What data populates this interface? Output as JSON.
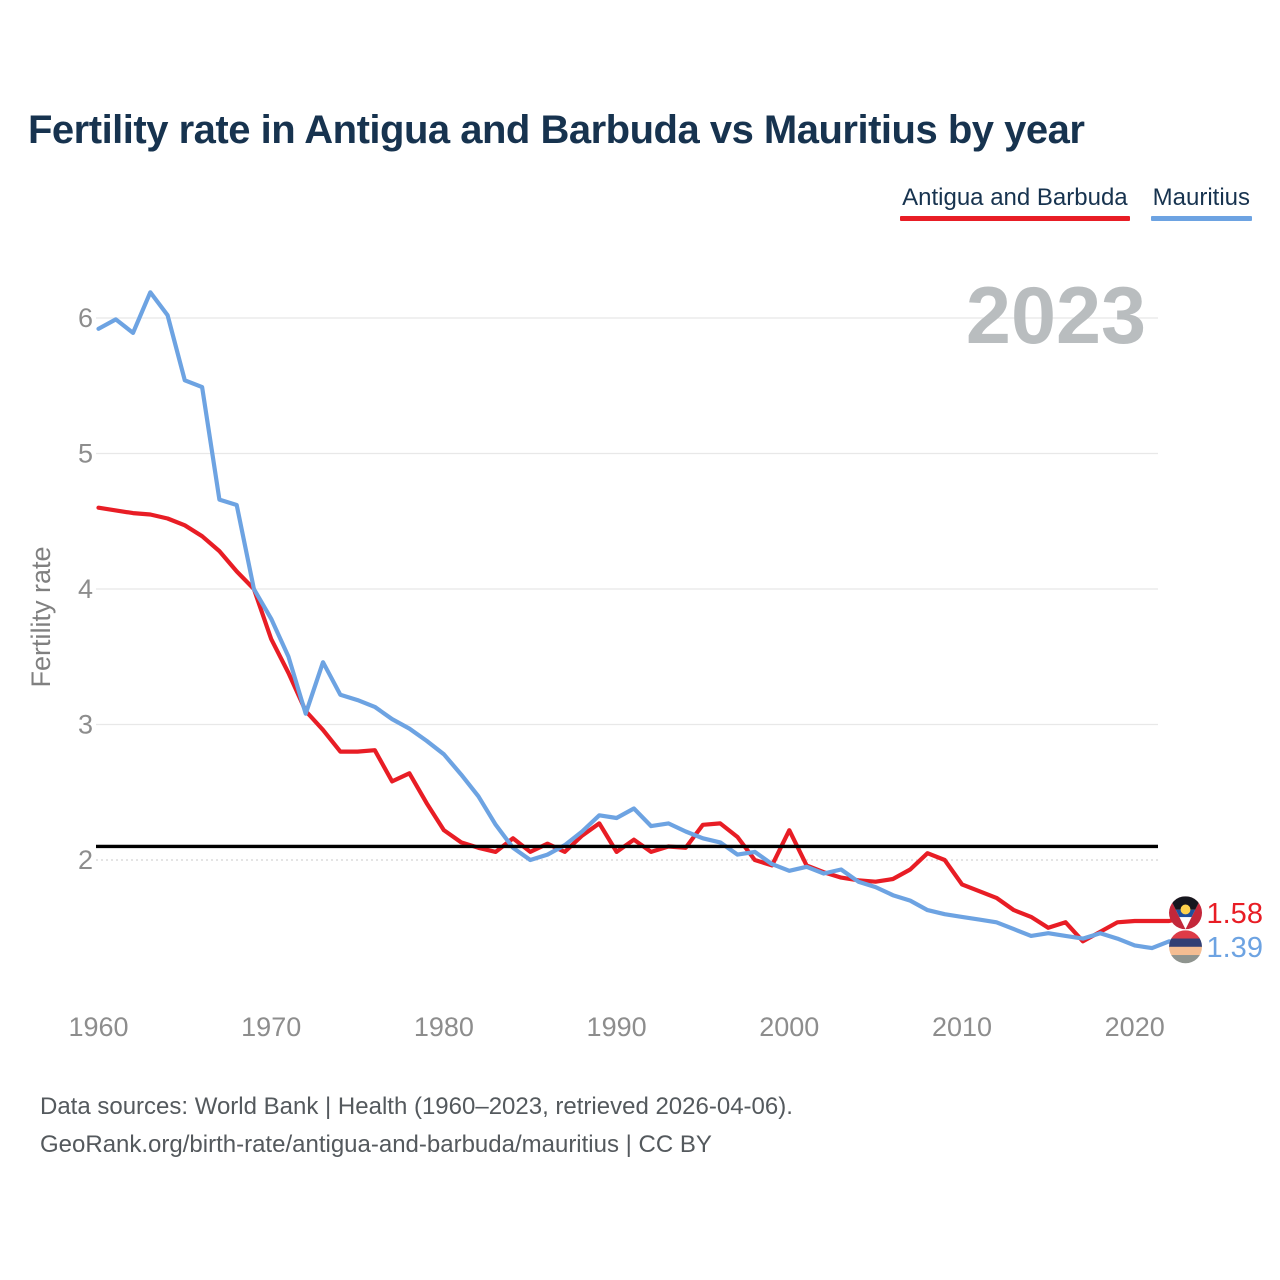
{
  "header": {
    "title": "Fertility rate in Antigua and Barbuda vs Mauritius by year"
  },
  "legend": [
    {
      "label": "Antigua and Barbuda",
      "color": "#e81d25"
    },
    {
      "label": "Mauritius",
      "color": "#6da3e2"
    }
  ],
  "footer": {
    "line1": "Data sources: World Bank | Health (1960–2023, retrieved 2026-04-06).",
    "line2": "GeoRank.org/birth-rate/antigua-and-barbuda/mauritius | CC BY"
  },
  "chart_data": {
    "type": "line",
    "title": "Fertility rate in Antigua and Barbuda vs Mauritius by year",
    "xlabel": "",
    "ylabel": "Fertility rate",
    "watermark": "2023",
    "x_ticks": [
      1960,
      1970,
      1980,
      1990,
      2000,
      2010,
      2020
    ],
    "y_ticks": [
      2,
      3,
      4,
      5,
      6
    ],
    "ylim": [
      1.25,
      6.35
    ],
    "xlim": [
      1960,
      2023
    ],
    "grid": "horizontal",
    "legend_position": "top-right",
    "reference_line": {
      "value": 2.1,
      "color": "#000000"
    },
    "x": [
      1960,
      1961,
      1962,
      1963,
      1964,
      1965,
      1966,
      1967,
      1968,
      1969,
      1970,
      1971,
      1972,
      1973,
      1974,
      1975,
      1976,
      1977,
      1978,
      1979,
      1980,
      1981,
      1982,
      1983,
      1984,
      1985,
      1986,
      1987,
      1988,
      1989,
      1990,
      1991,
      1992,
      1993,
      1994,
      1995,
      1996,
      1997,
      1998,
      1999,
      2000,
      2001,
      2002,
      2003,
      2004,
      2005,
      2006,
      2007,
      2008,
      2009,
      2010,
      2011,
      2012,
      2013,
      2014,
      2015,
      2016,
      2017,
      2018,
      2019,
      2020,
      2021,
      2022,
      2023
    ],
    "series": [
      {
        "name": "Antigua and Barbuda",
        "color": "#e81d25",
        "end_label": "1.58",
        "flag": "antigua-and-barbuda",
        "values": [
          4.6,
          4.58,
          4.56,
          4.55,
          4.52,
          4.47,
          4.39,
          4.28,
          4.13,
          4.0,
          3.63,
          3.38,
          3.1,
          2.96,
          2.8,
          2.8,
          2.81,
          2.58,
          2.64,
          2.42,
          2.22,
          2.13,
          2.09,
          2.06,
          2.16,
          2.06,
          2.12,
          2.06,
          2.18,
          2.27,
          2.06,
          2.15,
          2.06,
          2.1,
          2.09,
          2.26,
          2.27,
          2.17,
          2.0,
          1.96,
          2.22,
          1.96,
          1.91,
          1.87,
          1.85,
          1.84,
          1.86,
          1.93,
          2.05,
          2.0,
          1.82,
          1.77,
          1.72,
          1.63,
          1.58,
          1.5,
          1.54,
          1.4,
          1.47,
          1.54,
          1.55,
          1.55,
          1.55,
          1.58
        ]
      },
      {
        "name": "Mauritius",
        "color": "#6da3e2",
        "end_label": "1.39",
        "flag": "mauritius",
        "values": [
          5.92,
          5.99,
          5.89,
          6.19,
          6.02,
          5.54,
          5.49,
          4.66,
          4.62,
          4.0,
          3.78,
          3.5,
          3.08,
          3.46,
          3.22,
          3.18,
          3.13,
          3.04,
          2.97,
          2.88,
          2.78,
          2.63,
          2.47,
          2.26,
          2.09,
          2.0,
          2.04,
          2.11,
          2.21,
          2.33,
          2.31,
          2.38,
          2.25,
          2.27,
          2.21,
          2.16,
          2.13,
          2.04,
          2.06,
          1.97,
          1.92,
          1.95,
          1.9,
          1.93,
          1.84,
          1.8,
          1.74,
          1.7,
          1.63,
          1.6,
          1.58,
          1.56,
          1.54,
          1.49,
          1.44,
          1.46,
          1.44,
          1.42,
          1.46,
          1.42,
          1.37,
          1.35,
          1.4,
          1.39
        ]
      }
    ]
  }
}
